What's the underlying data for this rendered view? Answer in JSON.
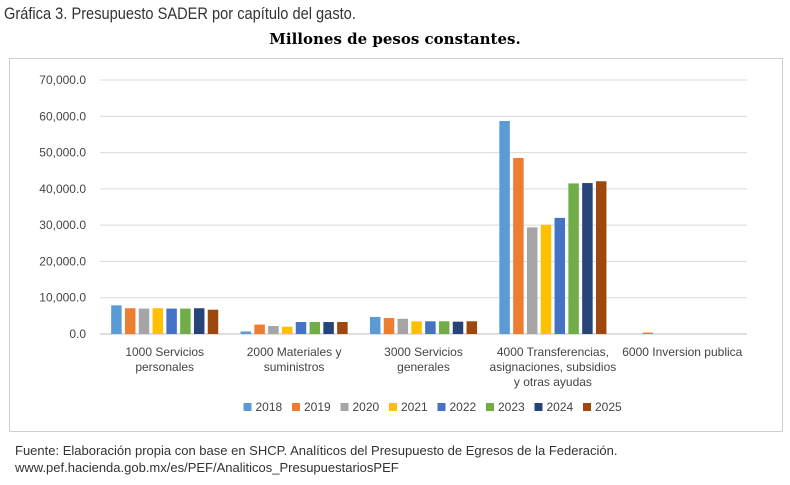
{
  "caption": "Gráfica 3. Presupuesto SADER por capítulo del gasto.",
  "source": "Fuente: Elaboración propia con base en SHCP. Analíticos del Presupuesto de Egresos de la Federación. www.pef.hacienda.gob.mx/es/PEF/Analiticos_PresupuestariosPEF",
  "colors": [
    "#5B9BD5",
    "#ED7D31",
    "#A5A5A5",
    "#FFC000",
    "#4472C4",
    "#70AD47",
    "#264478",
    "#9E480E"
  ],
  "chart_data": {
    "type": "bar",
    "title": "Millones de pesos constantes.",
    "xlabel": "",
    "ylabel": "",
    "ylim": [
      0,
      70000
    ],
    "yticks": [
      0,
      10000,
      20000,
      30000,
      40000,
      50000,
      60000,
      70000
    ],
    "ytick_labels": [
      "0.0",
      "10,000.0",
      "20,000.0",
      "30,000.0",
      "40,000.0",
      "50,000.0",
      "60,000.0",
      "70,000.0"
    ],
    "grid": true,
    "legend_position": "bottom",
    "categories": [
      [
        "1000 Servicios",
        "personales"
      ],
      [
        "2000 Materiales y",
        "suministros"
      ],
      [
        "3000 Servicios",
        "generales"
      ],
      [
        "4000 Transferencias,",
        "asignaciones, subsidios",
        "y otras ayudas"
      ],
      [
        "6000 Inversion publica"
      ]
    ],
    "series": [
      {
        "name": "2018",
        "values": [
          7900,
          700,
          4700,
          58700,
          0
        ]
      },
      {
        "name": "2019",
        "values": [
          7100,
          2600,
          4400,
          48500,
          400
        ]
      },
      {
        "name": "2020",
        "values": [
          7000,
          2200,
          4200,
          29400,
          0
        ]
      },
      {
        "name": "2021",
        "values": [
          7100,
          2000,
          3500,
          30100,
          0
        ]
      },
      {
        "name": "2022",
        "values": [
          7000,
          3300,
          3500,
          32000,
          0
        ]
      },
      {
        "name": "2023",
        "values": [
          7000,
          3300,
          3500,
          41500,
          0
        ]
      },
      {
        "name": "2024",
        "values": [
          7100,
          3300,
          3400,
          41600,
          0
        ]
      },
      {
        "name": "2025",
        "values": [
          6700,
          3300,
          3500,
          42100,
          0
        ]
      }
    ]
  }
}
